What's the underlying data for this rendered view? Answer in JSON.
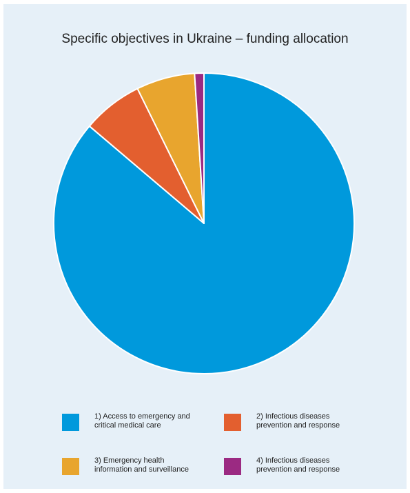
{
  "chart_data": {
    "type": "pie",
    "title": "Specific objectives in Ukraine – funding allocation",
    "slices": [
      {
        "label": "1) Access to emergency and critical medical care",
        "value": 86.2,
        "color": "#0099dc"
      },
      {
        "label": "2) Infectious diseases prevention and response",
        "value": 6.5,
        "color": "#e35f2f"
      },
      {
        "label": "3) Emergency health information and surveillance",
        "value": 6.3,
        "color": "#e8a52e"
      },
      {
        "label": "4) Infectious diseases prevention and response",
        "value": 1.0,
        "color": "#9b2a82"
      }
    ],
    "legend_position": "bottom"
  }
}
